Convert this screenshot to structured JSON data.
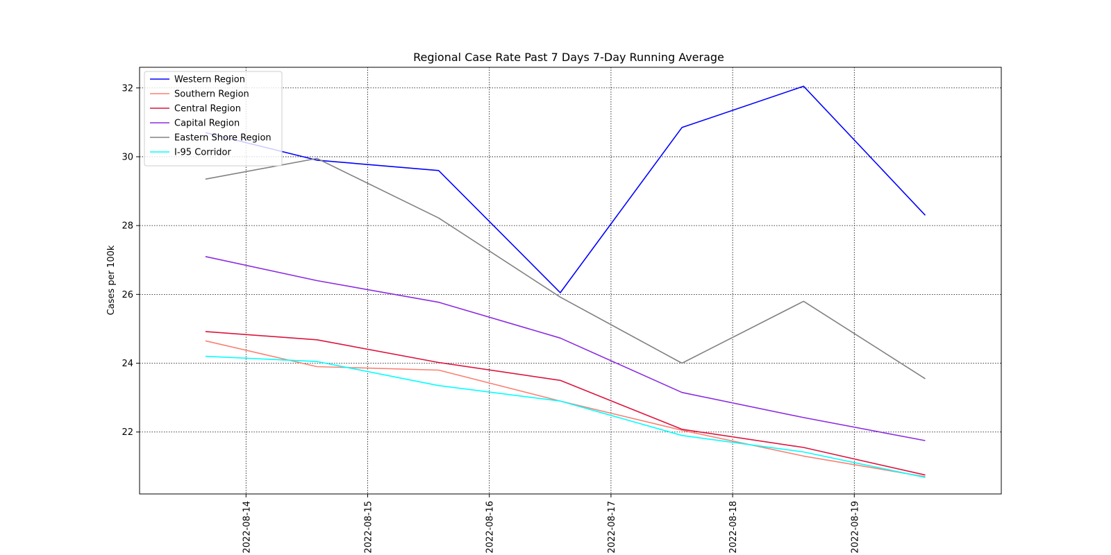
{
  "chart_data": {
    "type": "line",
    "title": "Regional Case Rate  Past 7 Days 7-Day Running Average",
    "xlabel": "",
    "ylabel": "Cases per 100k",
    "x": [
      "2022-08-13T16:00",
      "2022-08-14T14:00",
      "2022-08-15T14:00",
      "2022-08-16T14:00",
      "2022-08-17T14:00",
      "2022-08-18T14:00",
      "2022-08-19T14:00"
    ],
    "xticks": [
      "2022-08-14",
      "2022-08-15",
      "2022-08-16",
      "2022-08-17",
      "2022-08-18",
      "2022-08-19"
    ],
    "xlim": [
      "2022-08-13T03:00",
      "2022-08-20T05:00"
    ],
    "yticks": [
      22,
      24,
      26,
      28,
      30,
      32
    ],
    "ylim": [
      20.2,
      32.6
    ],
    "grid": true,
    "legend_position": "top-left",
    "series": [
      {
        "name": "Western Region",
        "color": "#0000ff",
        "values": [
          30.7,
          29.9,
          29.6,
          26.05,
          30.85,
          32.05,
          28.3
        ]
      },
      {
        "name": "Southern Region",
        "color": "#fa8072",
        "values": [
          24.65,
          23.9,
          23.8,
          22.9,
          22.05,
          21.3,
          20.7
        ]
      },
      {
        "name": "Central Region",
        "color": "#dc143c",
        "values": [
          24.92,
          24.68,
          24.02,
          23.5,
          22.08,
          21.55,
          20.75
        ]
      },
      {
        "name": "Capital Region",
        "color": "#8a2be2",
        "values": [
          27.1,
          26.4,
          25.77,
          24.73,
          23.15,
          22.42,
          21.75
        ]
      },
      {
        "name": "Eastern Shore Region",
        "color": "#808080",
        "values": [
          29.35,
          29.95,
          28.22,
          25.92,
          24.0,
          25.8,
          23.55
        ]
      },
      {
        "name": "I-95 Corridor",
        "color": "#00ffff",
        "values": [
          24.2,
          24.05,
          23.35,
          22.9,
          21.9,
          21.42,
          20.68
        ]
      }
    ]
  }
}
